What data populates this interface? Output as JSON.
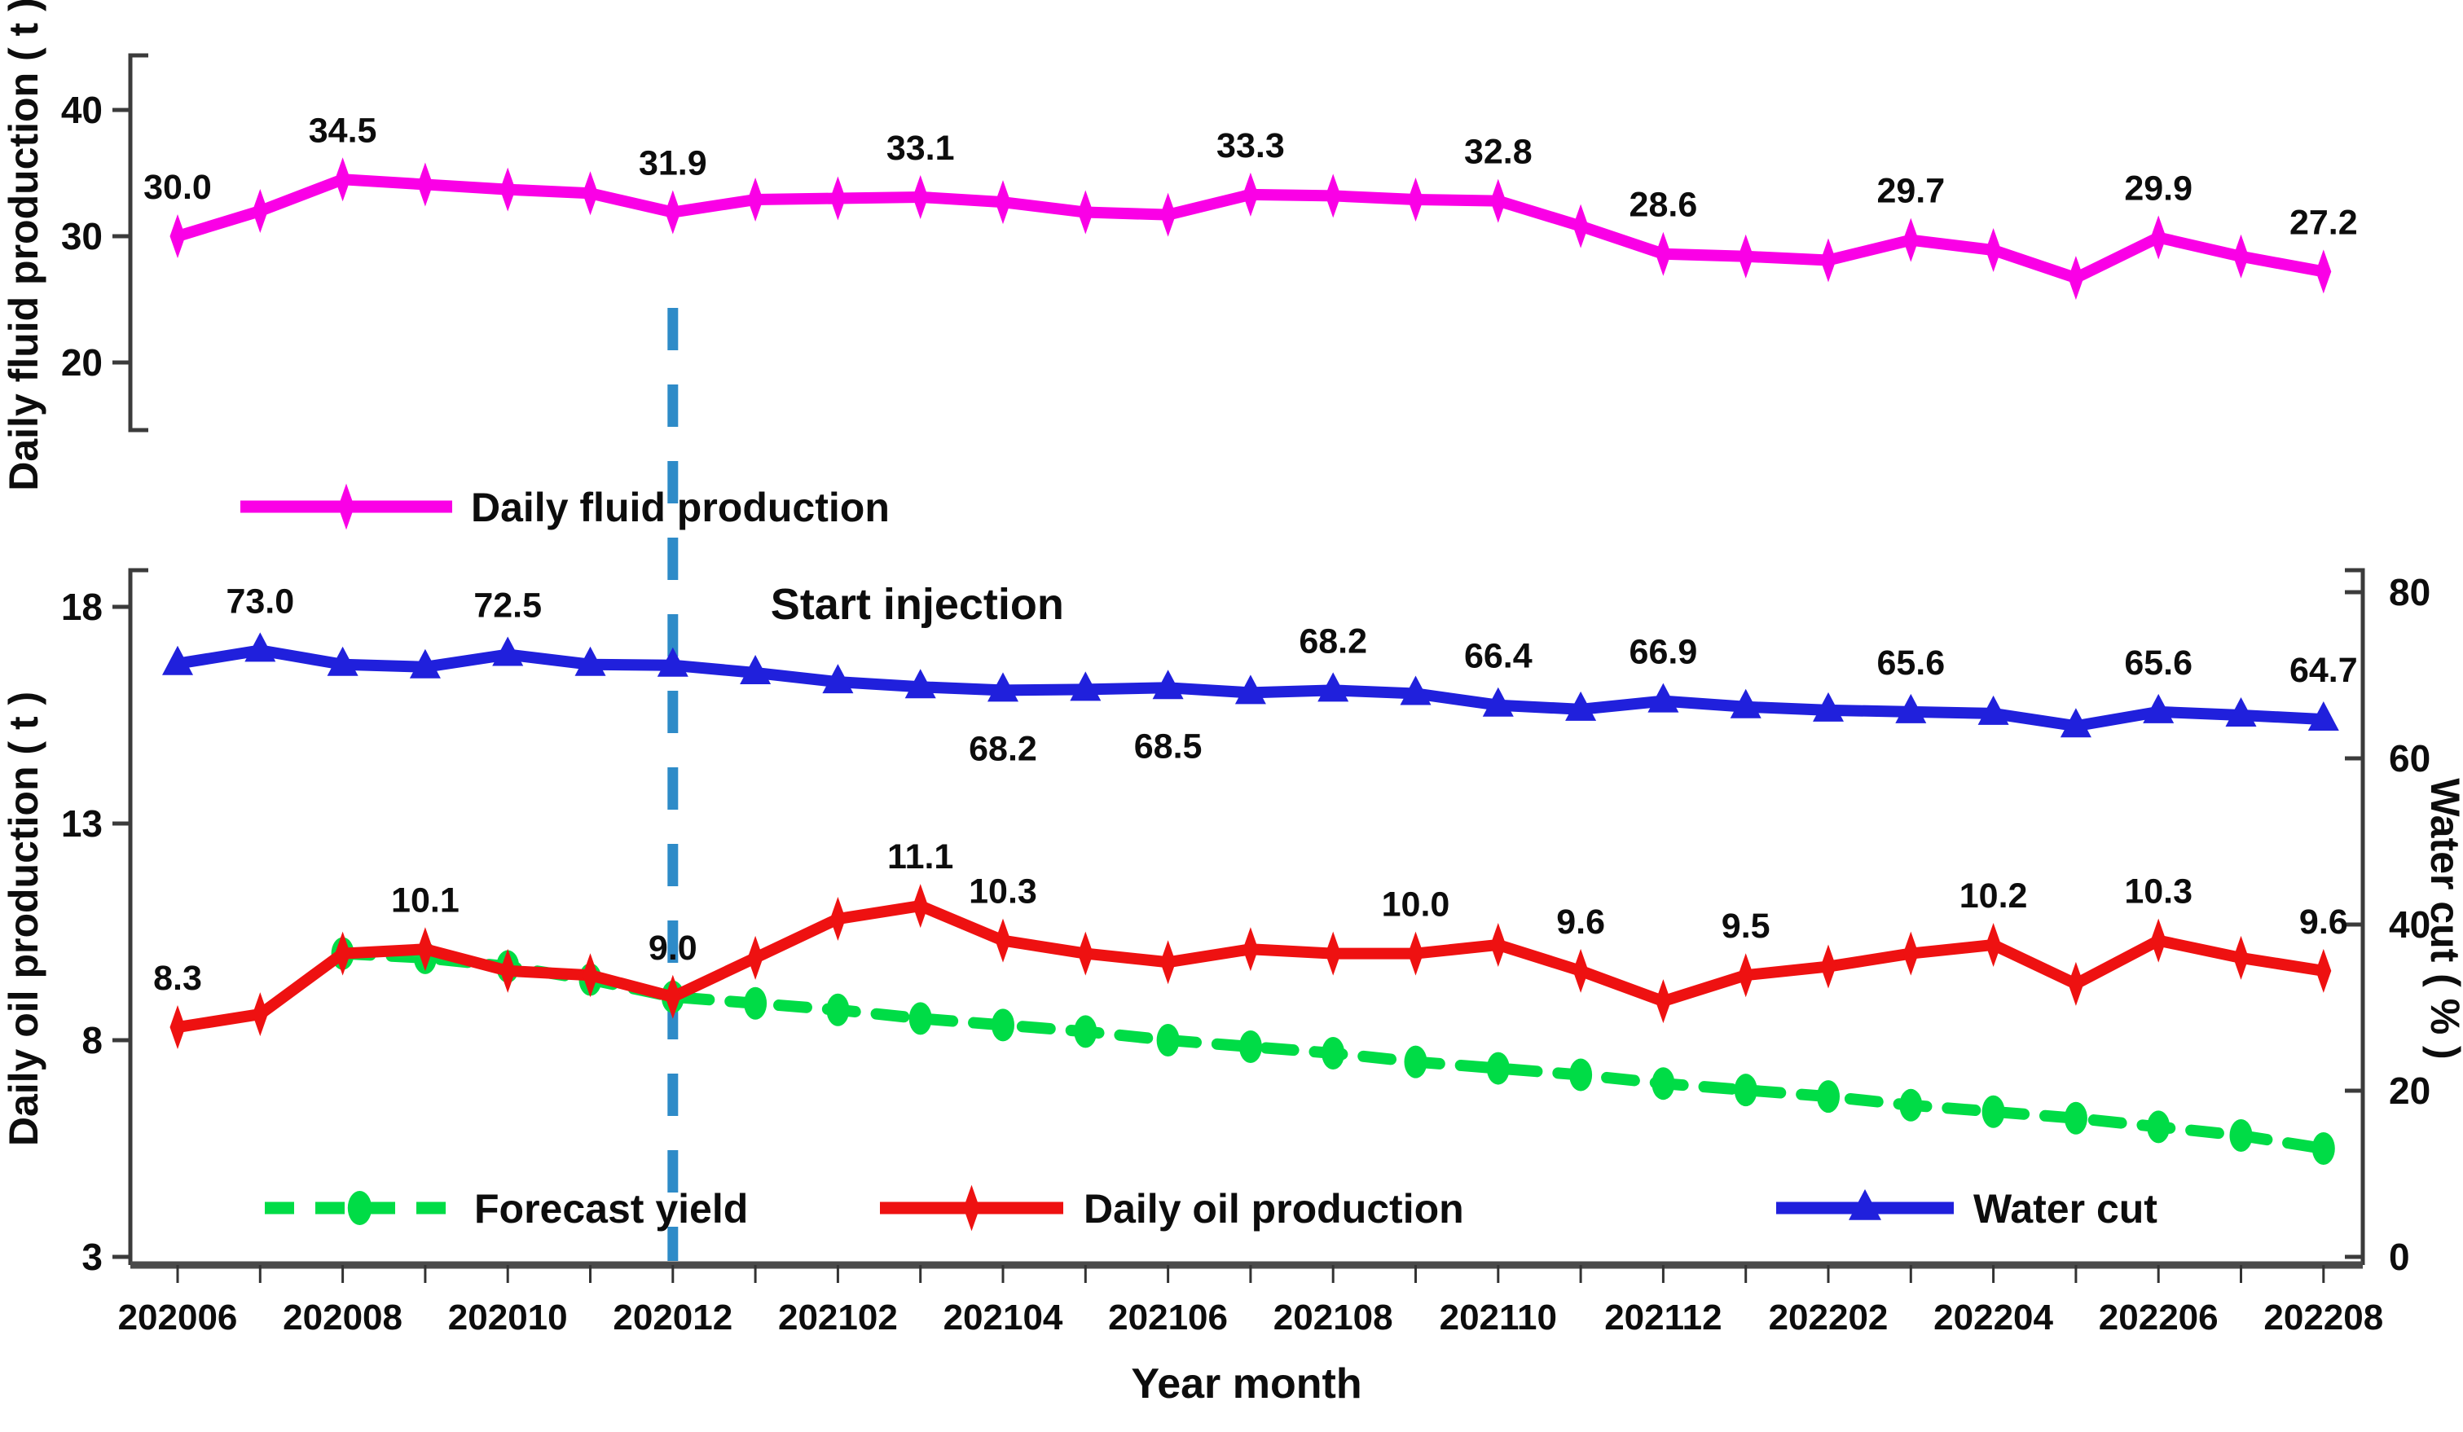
{
  "chart_data": {
    "type": "line",
    "title": "",
    "xlabel": "Year month",
    "annotation": {
      "text": "Start injection",
      "month_index": 6,
      "line_color": "#2E8BC8"
    },
    "axes": {
      "fluid": {
        "title": "Daily fluid production ( t )",
        "ticks": [
          40,
          30,
          20
        ]
      },
      "oil": {
        "title": "Daily oil production ( t )",
        "ticks": [
          18,
          13,
          8,
          3
        ]
      },
      "water": {
        "title": "Water cut ( % )",
        "ticks": [
          80,
          60,
          40,
          20,
          0
        ]
      }
    },
    "months": [
      "202006",
      "202007",
      "202008",
      "202009",
      "202010",
      "202011",
      "202012",
      "202101",
      "202102",
      "202103",
      "202104",
      "202105",
      "202106",
      "202107",
      "202108",
      "202109",
      "202110",
      "202111",
      "202112",
      "202201",
      "202202",
      "202203",
      "202204",
      "202205",
      "202206",
      "202207",
      "202208"
    ],
    "x_tick_labels": [
      "202006",
      "202008",
      "202010",
      "202012",
      "202102",
      "202104",
      "202106",
      "202108",
      "202110",
      "202112",
      "202202",
      "202204",
      "202206",
      "202208"
    ],
    "series": [
      {
        "id": "forecast",
        "name": "Forecast yield",
        "color": "#00DC46",
        "axis": "oil",
        "line": "dashed",
        "marker": "oval",
        "values": [
          null,
          null,
          10.0,
          9.9,
          9.7,
          9.4,
          9.0,
          8.85,
          8.7,
          8.5,
          8.35,
          8.2,
          8.0,
          7.85,
          7.7,
          7.5,
          7.35,
          7.2,
          7.0,
          6.85,
          6.7,
          6.5,
          6.35,
          6.2,
          6.0,
          5.8,
          5.5
        ],
        "point_labels": {}
      },
      {
        "id": "oil",
        "name": "Daily oil production",
        "color": "#EE1111",
        "axis": "oil",
        "line": "solid",
        "marker": "diamond",
        "values": [
          8.3,
          8.6,
          10.0,
          10.1,
          9.6,
          9.5,
          9.0,
          9.9,
          10.8,
          11.1,
          10.3,
          10.0,
          9.8,
          10.1,
          10.0,
          10.0,
          10.2,
          9.6,
          8.9,
          9.5,
          9.7,
          10.0,
          10.2,
          9.3,
          10.3,
          9.9,
          9.6
        ],
        "point_labels": {
          "0": "8.3",
          "3": "10.1",
          "6": "9.0",
          "9": "11.1",
          "10": "10.3",
          "15": "10.0",
          "17": "9.6",
          "19": "9.5",
          "22": "10.2",
          "24": "10.3",
          "26": "9.6"
        }
      },
      {
        "id": "water",
        "name": "Water cut",
        "color": "#2020DC",
        "axis": "water",
        "line": "solid",
        "marker": "triangle",
        "values": [
          71.4,
          73.0,
          71.3,
          71.0,
          72.5,
          71.3,
          71.2,
          70.3,
          69.2,
          68.6,
          68.2,
          68.3,
          68.5,
          67.9,
          68.2,
          67.8,
          66.4,
          65.9,
          66.9,
          66.2,
          65.8,
          65.6,
          65.4,
          63.9,
          65.6,
          65.2,
          64.7
        ],
        "point_labels": {
          "1": "73.0",
          "4": "72.5",
          "10": "68.2",
          "12": "68.5",
          "14": "68.2",
          "16": "66.4",
          "18": "66.9",
          "21": "65.6",
          "24": "65.6",
          "26": "64.7"
        },
        "labels_below": [
          10,
          12
        ]
      },
      {
        "id": "fluid",
        "name": "Daily fluid production",
        "color": "#FA00E6",
        "axis": "fluid",
        "line": "solid",
        "marker": "diamond",
        "values": [
          30.0,
          32.0,
          34.5,
          34.1,
          33.7,
          33.4,
          31.9,
          32.9,
          33.0,
          33.1,
          32.7,
          31.9,
          31.7,
          33.3,
          33.2,
          32.9,
          32.8,
          30.8,
          28.6,
          28.4,
          28.1,
          29.7,
          28.9,
          26.7,
          29.9,
          28.4,
          27.2
        ],
        "point_labels": {
          "0": "30.0",
          "2": "34.5",
          "6": "31.9",
          "9": "33.1",
          "13": "33.3",
          "16": "32.8",
          "18": "28.6",
          "21": "29.7",
          "24": "29.9",
          "26": "27.2"
        }
      }
    ],
    "legend_top": [
      "fluid"
    ],
    "legend_bottom": [
      "forecast",
      "oil",
      "water"
    ]
  }
}
